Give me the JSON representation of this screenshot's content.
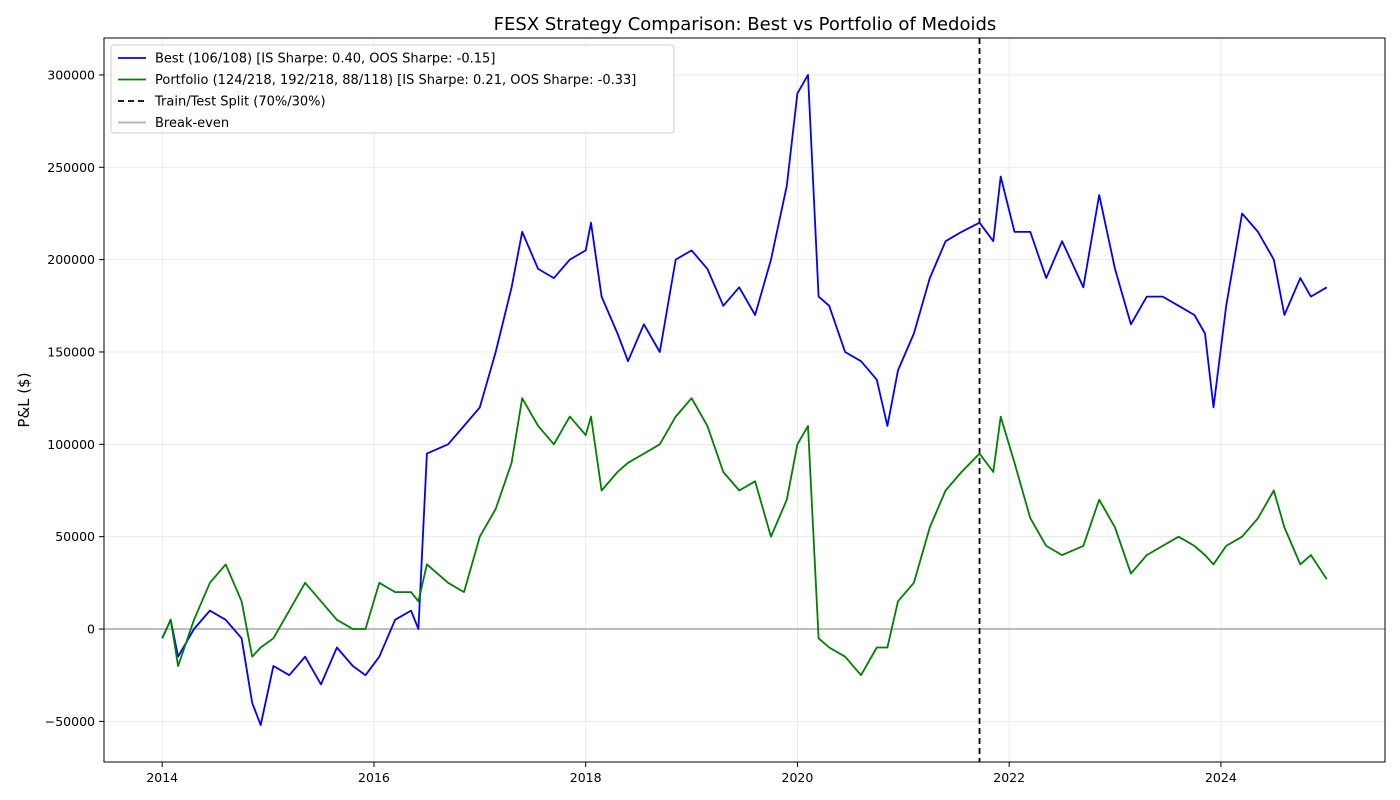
{
  "chart_data": {
    "type": "line",
    "title": "FESX Strategy Comparison: Best vs Portfolio of Medoids",
    "xlabel": "",
    "ylabel": "P&L ($)",
    "xlim": [
      2013.45,
      2025.55
    ],
    "ylim": [
      -72000,
      320000
    ],
    "x_ticks": [
      2014,
      2016,
      2018,
      2020,
      2022,
      2024
    ],
    "x_tick_labels": [
      "2014",
      "2016",
      "2018",
      "2020",
      "2022",
      "2024"
    ],
    "y_ticks": [
      -50000,
      0,
      50000,
      100000,
      150000,
      200000,
      250000,
      300000
    ],
    "y_tick_labels": [
      "−50000",
      "0",
      "50000",
      "100000",
      "150000",
      "200000",
      "250000",
      "300000"
    ],
    "grid": true,
    "legend_position": "top-left",
    "split_x": 2021.72,
    "breakeven_y": 0,
    "series": [
      {
        "name": "Best (106/108) [IS Sharpe: 0.40, OOS Sharpe: -0.15]",
        "color": "#0000ff",
        "x": [
          2014.0,
          2014.08,
          2014.15,
          2014.3,
          2014.45,
          2014.6,
          2014.75,
          2014.85,
          2014.93,
          2015.05,
          2015.2,
          2015.35,
          2015.5,
          2015.65,
          2015.8,
          2015.92,
          2016.05,
          2016.2,
          2016.35,
          2016.42,
          2016.5,
          2016.7,
          2016.85,
          2017.0,
          2017.15,
          2017.3,
          2017.4,
          2017.55,
          2017.7,
          2017.85,
          2018.0,
          2018.05,
          2018.15,
          2018.3,
          2018.4,
          2018.55,
          2018.7,
          2018.85,
          2019.0,
          2019.15,
          2019.3,
          2019.45,
          2019.6,
          2019.75,
          2019.9,
          2020.0,
          2020.1,
          2020.2,
          2020.3,
          2020.45,
          2020.6,
          2020.75,
          2020.85,
          2020.95,
          2021.1,
          2021.25,
          2021.4,
          2021.55,
          2021.72,
          2021.85,
          2021.92,
          2022.05,
          2022.2,
          2022.35,
          2022.5,
          2022.7,
          2022.85,
          2023.0,
          2023.15,
          2023.3,
          2023.45,
          2023.6,
          2023.75,
          2023.85,
          2023.93,
          2024.05,
          2024.2,
          2024.35,
          2024.5,
          2024.6,
          2024.75,
          2024.85,
          2025.0
        ],
        "y": [
          -5000,
          5000,
          -15000,
          0,
          10000,
          5000,
          -5000,
          -40000,
          -52000,
          -20000,
          -25000,
          -15000,
          -30000,
          -10000,
          -20000,
          -25000,
          -15000,
          5000,
          10000,
          0,
          95000,
          100000,
          110000,
          120000,
          150000,
          185000,
          215000,
          195000,
          190000,
          200000,
          205000,
          220000,
          180000,
          160000,
          145000,
          165000,
          150000,
          200000,
          205000,
          195000,
          175000,
          185000,
          170000,
          200000,
          240000,
          290000,
          300000,
          180000,
          175000,
          150000,
          145000,
          135000,
          110000,
          140000,
          160000,
          190000,
          210000,
          215000,
          220000,
          210000,
          245000,
          215000,
          215000,
          190000,
          210000,
          185000,
          235000,
          195000,
          165000,
          180000,
          180000,
          175000,
          170000,
          160000,
          120000,
          175000,
          225000,
          215000,
          200000,
          170000,
          190000,
          180000,
          185000
        ]
      },
      {
        "name": "Portfolio (124/218, 192/218, 88/118) [IS Sharpe: 0.21, OOS Sharpe: -0.33]",
        "color": "#008000",
        "x": [
          2014.0,
          2014.08,
          2014.15,
          2014.3,
          2014.45,
          2014.6,
          2014.75,
          2014.85,
          2014.93,
          2015.05,
          2015.2,
          2015.35,
          2015.5,
          2015.65,
          2015.8,
          2015.92,
          2016.05,
          2016.2,
          2016.35,
          2016.42,
          2016.5,
          2016.7,
          2016.85,
          2017.0,
          2017.15,
          2017.3,
          2017.4,
          2017.55,
          2017.7,
          2017.85,
          2018.0,
          2018.05,
          2018.15,
          2018.3,
          2018.4,
          2018.55,
          2018.7,
          2018.85,
          2019.0,
          2019.15,
          2019.3,
          2019.45,
          2019.6,
          2019.75,
          2019.9,
          2020.0,
          2020.1,
          2020.2,
          2020.3,
          2020.45,
          2020.6,
          2020.75,
          2020.85,
          2020.95,
          2021.1,
          2021.25,
          2021.4,
          2021.55,
          2021.72,
          2021.85,
          2021.92,
          2022.05,
          2022.2,
          2022.35,
          2022.5,
          2022.7,
          2022.85,
          2023.0,
          2023.15,
          2023.3,
          2023.45,
          2023.6,
          2023.75,
          2023.85,
          2023.93,
          2024.05,
          2024.2,
          2024.35,
          2024.5,
          2024.6,
          2024.75,
          2024.85,
          2025.0
        ],
        "y": [
          -5000,
          5000,
          -20000,
          5000,
          25000,
          35000,
          15000,
          -15000,
          -10000,
          -5000,
          10000,
          25000,
          15000,
          5000,
          0,
          0,
          25000,
          20000,
          20000,
          15000,
          35000,
          25000,
          20000,
          50000,
          65000,
          90000,
          125000,
          110000,
          100000,
          115000,
          105000,
          115000,
          75000,
          85000,
          90000,
          95000,
          100000,
          115000,
          125000,
          110000,
          85000,
          75000,
          80000,
          50000,
          70000,
          100000,
          110000,
          -5000,
          -10000,
          -15000,
          -25000,
          -10000,
          -10000,
          15000,
          25000,
          55000,
          75000,
          85000,
          95000,
          85000,
          115000,
          90000,
          60000,
          45000,
          40000,
          45000,
          70000,
          55000,
          30000,
          40000,
          45000,
          50000,
          45000,
          40000,
          35000,
          45000,
          50000,
          60000,
          75000,
          55000,
          35000,
          40000,
          27000
        ]
      }
    ],
    "legend": [
      {
        "label": "Best (106/108) [IS Sharpe: 0.40, OOS Sharpe: -0.15]",
        "color": "#0000ff",
        "style": "solid"
      },
      {
        "label": "Portfolio (124/218, 192/218, 88/118) [IS Sharpe: 0.21, OOS Sharpe: -0.33]",
        "color": "#008000",
        "style": "solid"
      },
      {
        "label": "Train/Test Split (70%/30%)",
        "color": "#000000",
        "style": "dashed"
      },
      {
        "label": "Break-even",
        "color": "#b0b0b0",
        "style": "solid"
      }
    ]
  }
}
